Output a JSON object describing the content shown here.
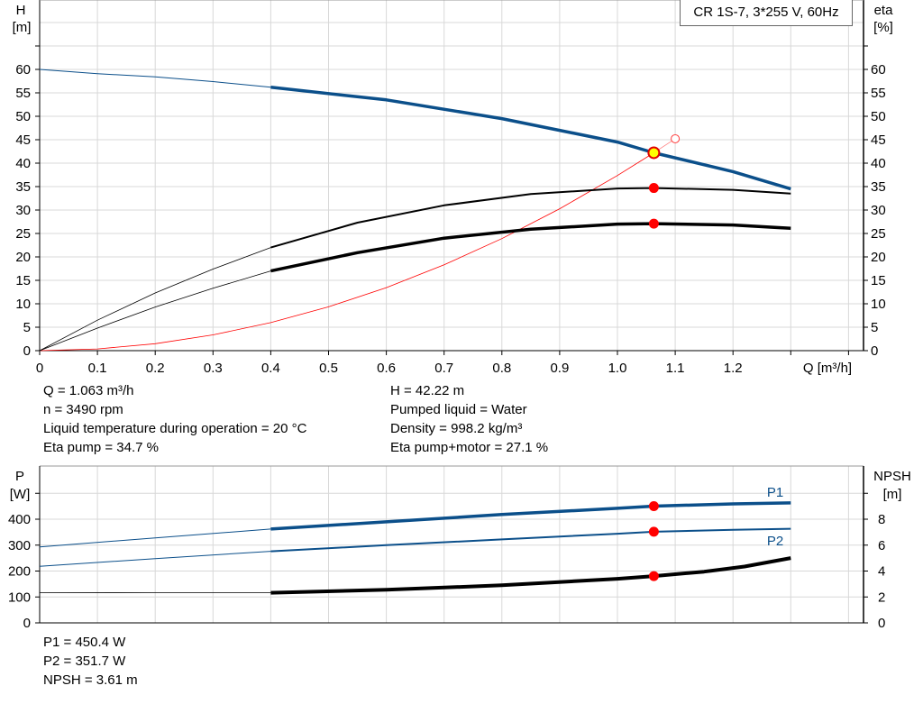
{
  "chart_data": [
    {
      "type": "line",
      "title": "CR 1S-7, 3*255 V, 60Hz",
      "xlabel": "Q [m³/h]",
      "ylabel_left": [
        "H",
        "[m]"
      ],
      "ylabel_right": [
        "eta",
        "[%]"
      ],
      "xlim": [
        0,
        1.4
      ],
      "ylim_left": [
        0,
        75
      ],
      "ylim_right": [
        0,
        75
      ],
      "xticks": [
        "0",
        "0.1",
        "0.2",
        "0.3",
        "0.4",
        "0.5",
        "0.6",
        "0.7",
        "0.8",
        "0.9",
        "1.0",
        "1.1",
        "1.2"
      ],
      "yticks": [
        "0",
        "5",
        "10",
        "15",
        "20",
        "25",
        "30",
        "35",
        "40",
        "45",
        "50",
        "55",
        "60"
      ],
      "grid": true,
      "series": [
        {
          "id": "H",
          "axis": "left",
          "color": "#0b4f8a",
          "x": [
            0,
            0.1,
            0.2,
            0.3,
            0.4,
            0.6,
            0.8,
            1.0,
            1.063,
            1.2,
            1.3
          ],
          "y": [
            60,
            59.1,
            58.4,
            57.4,
            56.2,
            53.5,
            49.5,
            44.5,
            42.22,
            38.2,
            34.5
          ]
        },
        {
          "id": "eta-pump",
          "axis": "right",
          "color": "#000000",
          "x": [
            0,
            0.1,
            0.2,
            0.3,
            0.4,
            0.55,
            0.7,
            0.85,
            1.0,
            1.063,
            1.2,
            1.3
          ],
          "y": [
            0,
            6.5,
            12.3,
            17.4,
            22,
            27.3,
            31,
            33.4,
            34.6,
            34.7,
            34.3,
            33.5
          ]
        },
        {
          "id": "eta-pump-motor",
          "axis": "right",
          "color": "#000000",
          "x": [
            0,
            0.1,
            0.2,
            0.3,
            0.4,
            0.55,
            0.7,
            0.85,
            1.0,
            1.063,
            1.2,
            1.3
          ],
          "y": [
            0,
            4.8,
            9.3,
            13.3,
            17,
            20.9,
            24,
            25.9,
            27,
            27.1,
            26.8,
            26.1
          ]
        },
        {
          "id": "system-curve",
          "axis": "left",
          "color": "#ff0000",
          "x": [
            0,
            0.1,
            0.2,
            0.3,
            0.4,
            0.5,
            0.6,
            0.7,
            0.8,
            0.9,
            1.0,
            1.063
          ],
          "y": [
            0,
            0.37,
            1.49,
            3.36,
            5.98,
            9.34,
            13.45,
            18.31,
            23.91,
            30.26,
            37.36,
            42.22
          ]
        }
      ],
      "duty_point": {
        "Q": 1.063,
        "H": 42.22,
        "eta_pump": 34.7,
        "eta_pump_motor": 27.1
      },
      "system_curve_end": {
        "Q": 1.1,
        "H": 45.2
      }
    },
    {
      "type": "line",
      "ylabel_left": [
        "P",
        "[W]"
      ],
      "ylabel_right": [
        "NPSH",
        "[m]"
      ],
      "xlim": [
        0,
        1.4
      ],
      "ylim_left": [
        0,
        600
      ],
      "ylim_right": [
        0,
        12
      ],
      "yticks_left": [
        "0",
        "100",
        "200",
        "300",
        "400"
      ],
      "yticks_right": [
        "0",
        "2",
        "4",
        "6",
        "8"
      ],
      "grid": true,
      "series": [
        {
          "id": "P1",
          "name": "P1",
          "axis": "left",
          "color": "#0b4f8a",
          "x": [
            0,
            0.2,
            0.4,
            0.6,
            0.8,
            1.0,
            1.063,
            1.2,
            1.3
          ],
          "y": [
            293,
            328,
            362,
            390,
            418,
            442,
            450.4,
            459,
            463
          ]
        },
        {
          "id": "P2",
          "name": "P2",
          "axis": "left",
          "color": "#0b4f8a",
          "x": [
            0,
            0.2,
            0.4,
            0.6,
            0.8,
            1.0,
            1.063,
            1.2,
            1.3
          ],
          "y": [
            218,
            248,
            276,
            300,
            322,
            344,
            351.7,
            359,
            363
          ]
        },
        {
          "id": "NPSH",
          "axis": "right",
          "color": "#000000",
          "x": [
            0,
            0.2,
            0.4,
            0.6,
            0.8,
            1.0,
            1.063,
            1.15,
            1.22,
            1.3
          ],
          "y": [
            2.33,
            2.32,
            2.32,
            2.55,
            2.9,
            3.4,
            3.61,
            3.95,
            4.35,
            5.0
          ]
        }
      ],
      "duty_point": {
        "P1": 450.4,
        "P2": 351.7,
        "NPSH": 3.61
      }
    }
  ],
  "info_top": {
    "q": "Q = 1.063 m³/h",
    "n": "n = 3490 rpm",
    "temp": "Liquid temperature during operation = 20 °C",
    "eta_pump": "Eta pump = 34.7 %",
    "h": "H = 42.22 m",
    "liquid": "Pumped liquid = Water",
    "density": "Density = 998.2 kg/m³",
    "eta_pm": "Eta pump+motor = 27.1 %"
  },
  "info_bottom": {
    "p1": "P1 = 450.4 W",
    "p2": "P2 = 351.7 W",
    "npsh": "NPSH = 3.61 m"
  }
}
